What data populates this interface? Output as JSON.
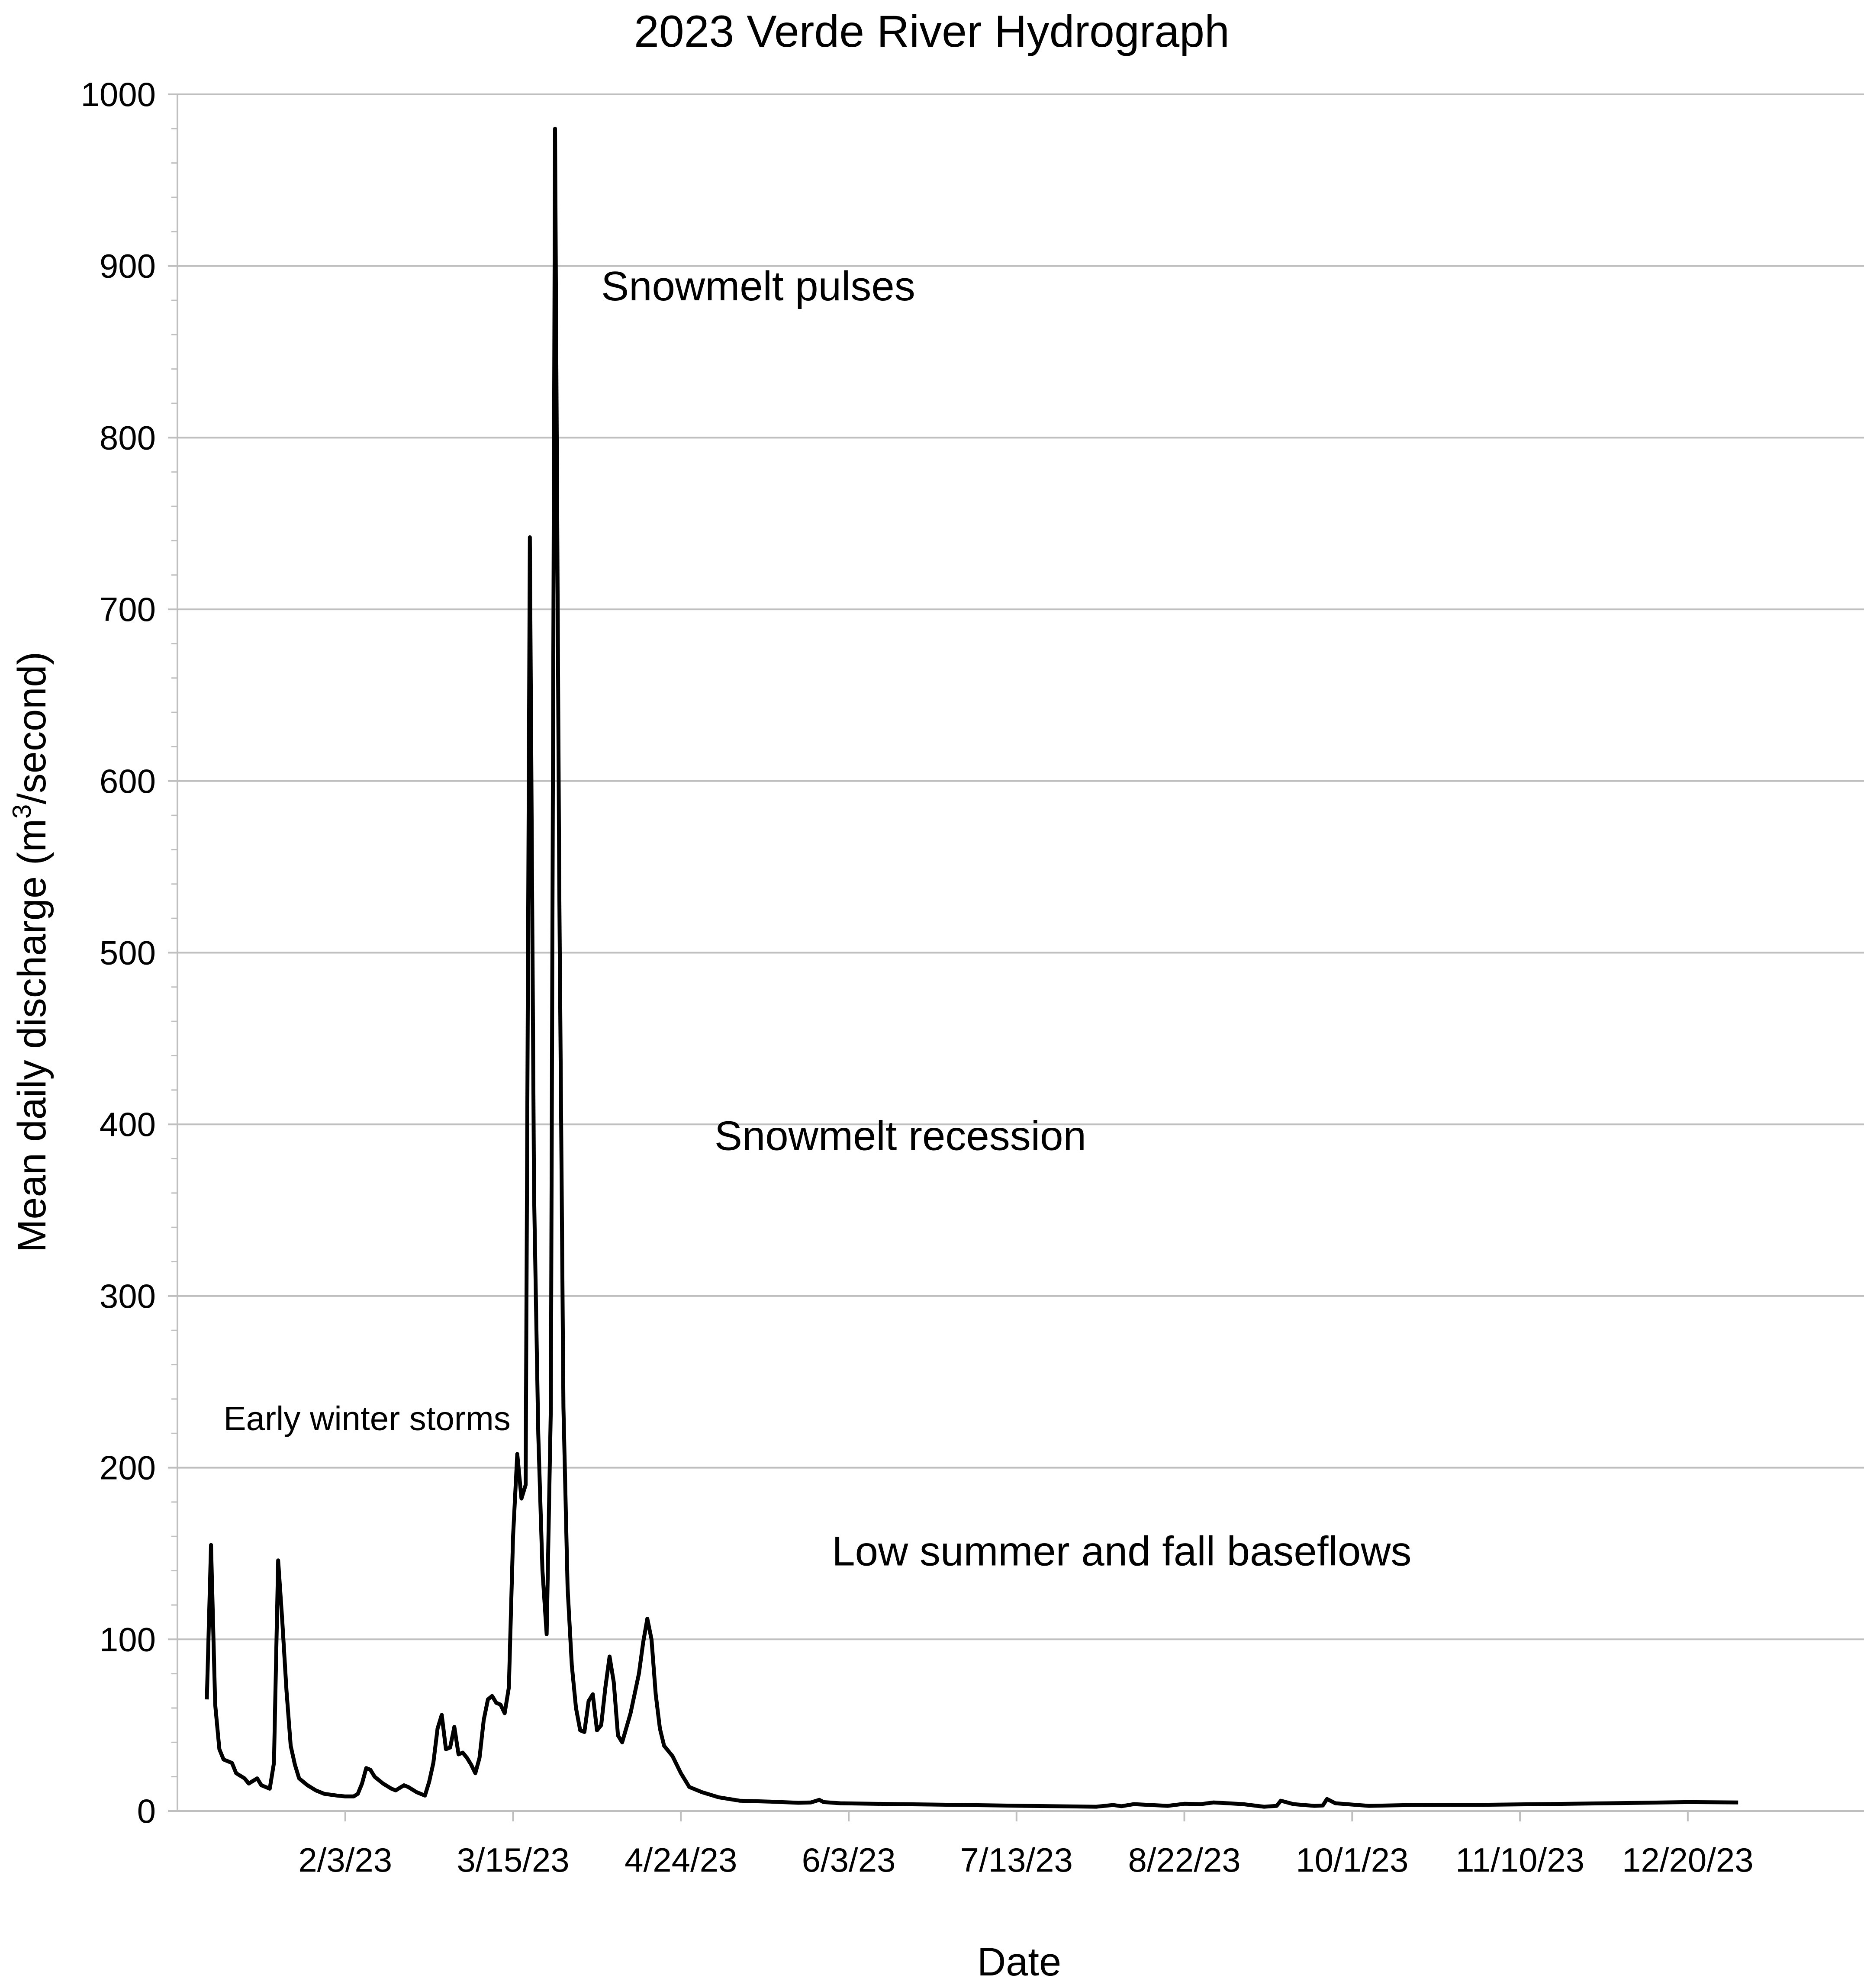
{
  "chart_data": {
    "type": "line",
    "title": "2023 Verde River Hydrograph",
    "xlabel": "Date",
    "ylabel": "Mean daily discharge (m³/second)",
    "ylabel_parts": {
      "before": "Mean daily discharge (m",
      "sup": "3",
      "after": "/second)"
    },
    "ylim": [
      0,
      1000
    ],
    "y_ticks": [
      0,
      100,
      200,
      300,
      400,
      500,
      600,
      700,
      800,
      900,
      1000
    ],
    "x_tick_labels": [
      "2/3/23",
      "3/15/23",
      "4/24/23",
      "6/3/23",
      "7/13/23",
      "8/22/23",
      "10/1/23",
      "11/10/23",
      "12/20/23"
    ],
    "x_tick_dates": [
      "2023-02-03",
      "2023-03-15",
      "2023-04-24",
      "2023-06-03",
      "2023-07-13",
      "2023-08-22",
      "2023-10-01",
      "2023-11-10",
      "2023-12-20"
    ],
    "xlim": [
      "2022-12-25",
      "2024-01-31"
    ],
    "grid": {
      "horizontal": true,
      "vertical": false
    },
    "line_color": "#000000",
    "grid_color": "#bfbfbf",
    "series": [
      {
        "values": [
          [
            "2023-01-01",
            65
          ],
          [
            "2023-01-02",
            155
          ],
          [
            "2023-01-03",
            62
          ],
          [
            "2023-01-04",
            36
          ],
          [
            "2023-01-05",
            30
          ],
          [
            "2023-01-07",
            28
          ],
          [
            "2023-01-08",
            22
          ],
          [
            "2023-01-10",
            19
          ],
          [
            "2023-01-11",
            16
          ],
          [
            "2023-01-13",
            19
          ],
          [
            "2023-01-14",
            15
          ],
          [
            "2023-01-16",
            13
          ],
          [
            "2023-01-17",
            28
          ],
          [
            "2023-01-18",
            146
          ],
          [
            "2023-01-19",
            110
          ],
          [
            "2023-01-20",
            70
          ],
          [
            "2023-01-21",
            38
          ],
          [
            "2023-01-22",
            27
          ],
          [
            "2023-01-23",
            19
          ],
          [
            "2023-01-25",
            15
          ],
          [
            "2023-01-27",
            12
          ],
          [
            "2023-01-29",
            10
          ],
          [
            "2023-02-01",
            9
          ],
          [
            "2023-02-03",
            8.5
          ],
          [
            "2023-02-05",
            8.5
          ],
          [
            "2023-02-06",
            10
          ],
          [
            "2023-02-07",
            16
          ],
          [
            "2023-02-08",
            25
          ],
          [
            "2023-02-09",
            24
          ],
          [
            "2023-02-10",
            20
          ],
          [
            "2023-02-12",
            16
          ],
          [
            "2023-02-14",
            13
          ],
          [
            "2023-02-15",
            12
          ],
          [
            "2023-02-17",
            15
          ],
          [
            "2023-02-18",
            14
          ],
          [
            "2023-02-20",
            11
          ],
          [
            "2023-02-22",
            9
          ],
          [
            "2023-02-23",
            17
          ],
          [
            "2023-02-24",
            28
          ],
          [
            "2023-02-25",
            48
          ],
          [
            "2023-02-26",
            56
          ],
          [
            "2023-02-27",
            36
          ],
          [
            "2023-02-28",
            37
          ],
          [
            "2023-03-01",
            49
          ],
          [
            "2023-03-02",
            33
          ],
          [
            "2023-03-03",
            34
          ],
          [
            "2023-03-04",
            31
          ],
          [
            "2023-03-05",
            27
          ],
          [
            "2023-03-06",
            22
          ],
          [
            "2023-03-07",
            31
          ],
          [
            "2023-03-08",
            53
          ],
          [
            "2023-03-09",
            65
          ],
          [
            "2023-03-10",
            67
          ],
          [
            "2023-03-11",
            63
          ],
          [
            "2023-03-12",
            62
          ],
          [
            "2023-03-13",
            57
          ],
          [
            "2023-03-14",
            72
          ],
          [
            "2023-03-15",
            160
          ],
          [
            "2023-03-16",
            208
          ],
          [
            "2023-03-17",
            182
          ],
          [
            "2023-03-18",
            190
          ],
          [
            "2023-03-19",
            742
          ],
          [
            "2023-03-20",
            360
          ],
          [
            "2023-03-21",
            220
          ],
          [
            "2023-03-22",
            140
          ],
          [
            "2023-03-23",
            103
          ],
          [
            "2023-03-24",
            235
          ],
          [
            "2023-03-25",
            980
          ],
          [
            "2023-03-26",
            540
          ],
          [
            "2023-03-27",
            235
          ],
          [
            "2023-03-28",
            130
          ],
          [
            "2023-03-29",
            85
          ],
          [
            "2023-03-30",
            60
          ],
          [
            "2023-03-31",
            47
          ],
          [
            "2023-04-01",
            46
          ],
          [
            "2023-04-02",
            64
          ],
          [
            "2023-04-03",
            68
          ],
          [
            "2023-04-04",
            47
          ],
          [
            "2023-04-05",
            50
          ],
          [
            "2023-04-06",
            72
          ],
          [
            "2023-04-07",
            90
          ],
          [
            "2023-04-08",
            75
          ],
          [
            "2023-04-09",
            44
          ],
          [
            "2023-04-10",
            40
          ],
          [
            "2023-04-12",
            57
          ],
          [
            "2023-04-14",
            80
          ],
          [
            "2023-04-15",
            98
          ],
          [
            "2023-04-16",
            112
          ],
          [
            "2023-04-17",
            100
          ],
          [
            "2023-04-18",
            68
          ],
          [
            "2023-04-19",
            48
          ],
          [
            "2023-04-20",
            38
          ],
          [
            "2023-04-22",
            32
          ],
          [
            "2023-04-24",
            22
          ],
          [
            "2023-04-26",
            14
          ],
          [
            "2023-04-29",
            11
          ],
          [
            "2023-05-03",
            8
          ],
          [
            "2023-05-08",
            6
          ],
          [
            "2023-05-15",
            5.5
          ],
          [
            "2023-05-22",
            4.8
          ],
          [
            "2023-05-25",
            5
          ],
          [
            "2023-05-27",
            6.5
          ],
          [
            "2023-05-28",
            5.2
          ],
          [
            "2023-06-01",
            4.5
          ],
          [
            "2023-06-15",
            4
          ],
          [
            "2023-07-01",
            3.5
          ],
          [
            "2023-07-15",
            3
          ],
          [
            "2023-08-01",
            2.5
          ],
          [
            "2023-08-05",
            3.5
          ],
          [
            "2023-08-07",
            2.8
          ],
          [
            "2023-08-10",
            4
          ],
          [
            "2023-08-18",
            3
          ],
          [
            "2023-08-22",
            4.2
          ],
          [
            "2023-08-26",
            4
          ],
          [
            "2023-08-29",
            5
          ],
          [
            "2023-09-05",
            4
          ],
          [
            "2023-09-10",
            2.5
          ],
          [
            "2023-09-13",
            3
          ],
          [
            "2023-09-14",
            6
          ],
          [
            "2023-09-17",
            4
          ],
          [
            "2023-09-22",
            3
          ],
          [
            "2023-09-24",
            3.2
          ],
          [
            "2023-09-25",
            7
          ],
          [
            "2023-09-27",
            4.5
          ],
          [
            "2023-10-05",
            3
          ],
          [
            "2023-10-15",
            3.5
          ],
          [
            "2023-11-01",
            3.6
          ],
          [
            "2023-11-15",
            4
          ],
          [
            "2023-12-01",
            4.5
          ],
          [
            "2023-12-20",
            5.2
          ],
          [
            "2024-01-01",
            5
          ]
        ]
      }
    ],
    "annotations": [
      {
        "text": "Snowmelt pulses",
        "x": "2023-04-05",
        "y": 880
      },
      {
        "text": "Snowmelt recession",
        "x": "2023-05-02",
        "y": 385
      },
      {
        "text": "Low summer and fall baseflows",
        "x": "2023-05-30",
        "y": 143
      },
      {
        "text": "Early winter storms",
        "x": "2023-01-05",
        "y": 222
      }
    ]
  }
}
